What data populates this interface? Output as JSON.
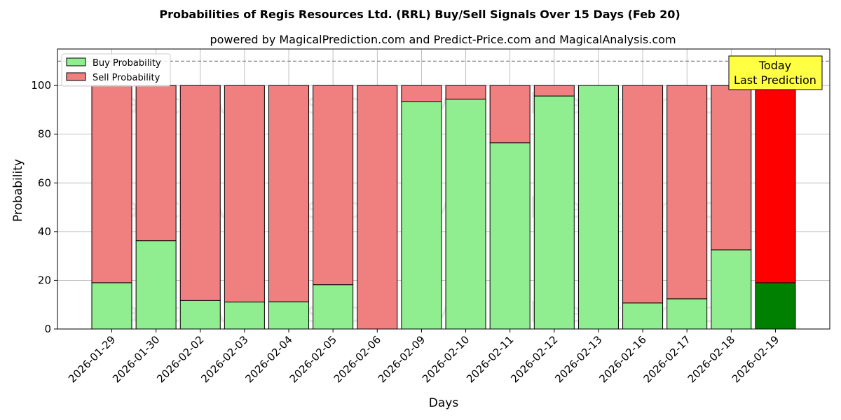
{
  "chart_data": {
    "type": "bar",
    "stacked": true,
    "title": "Probabilities of Regis Resources Ltd. (RRL) Buy/Sell Signals Over 15 Days (Feb 20)",
    "subtitle": "powered by MagicalPrediction.com and Predict-Price.com and MagicalAnalysis.com",
    "xlabel": "Days",
    "ylabel": "Probability",
    "ylim": [
      0,
      115
    ],
    "yticks": [
      0,
      20,
      40,
      60,
      80,
      100
    ],
    "reference_line": 110,
    "grid": true,
    "legend_position": "top-left",
    "categories": [
      "2026-01-29",
      "2026-01-30",
      "2026-02-02",
      "2026-02-03",
      "2026-02-04",
      "2026-02-05",
      "2026-02-06",
      "2026-02-09",
      "2026-02-10",
      "2026-02-11",
      "2026-02-12",
      "2026-02-13",
      "2026-02-16",
      "2026-02-17",
      "2026-02-18",
      "2026-02-19"
    ],
    "series": [
      {
        "name": "Buy Probability",
        "color": "#90ee90",
        "highlight_color": "#008000",
        "values": [
          19,
          36.3,
          11.7,
          11.1,
          11.2,
          18.2,
          0,
          93.3,
          94.4,
          76.5,
          95.7,
          100,
          10.7,
          12.4,
          32.5,
          19
        ]
      },
      {
        "name": "Sell Probability",
        "color": "#f08080",
        "highlight_color": "#ff0000",
        "values": [
          81,
          63.7,
          88.3,
          88.9,
          88.8,
          81.8,
          100,
          6.7,
          5.6,
          23.5,
          4.3,
          0,
          89.3,
          87.6,
          67.5,
          81
        ]
      }
    ],
    "highlight_index": 15,
    "annotation": [
      "Today",
      "Last Prediction"
    ],
    "annotation_color": "#ffff44",
    "watermarks": [
      "MagicalAnalysis.com",
      "MagicalPrediction.com"
    ]
  }
}
